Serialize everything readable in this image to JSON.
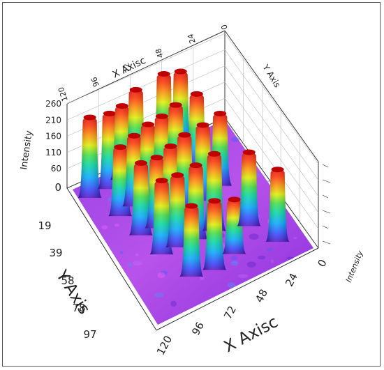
{
  "chart_data": {
    "type": "surface3d",
    "title": "",
    "x_axis": {
      "label_front": "X Axisc",
      "label_back": "X Axisc",
      "ticks_front": [
        "120",
        "96",
        "72",
        "48",
        "24",
        "0"
      ],
      "ticks_back": [
        "120",
        "96",
        "72",
        "48",
        "24",
        "0"
      ],
      "range": [
        0,
        120
      ]
    },
    "y_axis": {
      "label": "Y Axis",
      "ticks": [
        "19",
        "39",
        "58",
        "78",
        "97"
      ],
      "range": [
        0,
        97
      ]
    },
    "z_axis": {
      "label": "Intensity",
      "label_right": "Intensity",
      "ticks": [
        "0",
        "60",
        "110",
        "160",
        "210",
        "260"
      ],
      "range": [
        0,
        260
      ]
    },
    "right_axis_label": "Y Axis",
    "colormap": [
      "#5a00b0",
      "#9b30ff",
      "#3050ff",
      "#00b0ff",
      "#00e080",
      "#ffff00",
      "#ff8000",
      "#ff0000"
    ],
    "peaks": [
      {
        "x": 110,
        "y": 10,
        "z": 250
      },
      {
        "x": 95,
        "y": 10,
        "z": 235
      },
      {
        "x": 84,
        "y": 8,
        "z": 230
      },
      {
        "x": 72,
        "y": 6,
        "z": 250
      },
      {
        "x": 50,
        "y": 5,
        "z": 255
      },
      {
        "x": 38,
        "y": 6,
        "z": 245
      },
      {
        "x": 100,
        "y": 28,
        "z": 215
      },
      {
        "x": 88,
        "y": 26,
        "z": 220
      },
      {
        "x": 76,
        "y": 24,
        "z": 225
      },
      {
        "x": 64,
        "y": 22,
        "z": 220
      },
      {
        "x": 52,
        "y": 20,
        "z": 225
      },
      {
        "x": 36,
        "y": 20,
        "z": 230
      },
      {
        "x": 96,
        "y": 44,
        "z": 225
      },
      {
        "x": 84,
        "y": 44,
        "z": 220
      },
      {
        "x": 72,
        "y": 42,
        "z": 225
      },
      {
        "x": 60,
        "y": 40,
        "z": 230
      },
      {
        "x": 46,
        "y": 40,
        "z": 235
      },
      {
        "x": 30,
        "y": 36,
        "z": 225
      },
      {
        "x": 92,
        "y": 60,
        "z": 230
      },
      {
        "x": 80,
        "y": 60,
        "z": 225
      },
      {
        "x": 66,
        "y": 60,
        "z": 230
      },
      {
        "x": 52,
        "y": 60,
        "z": 240
      },
      {
        "x": 30,
        "y": 66,
        "z": 230
      },
      {
        "x": 84,
        "y": 80,
        "z": 220
      },
      {
        "x": 68,
        "y": 82,
        "z": 215
      },
      {
        "x": 50,
        "y": 78,
        "z": 170
      },
      {
        "x": 20,
        "y": 82,
        "z": 225
      }
    ]
  }
}
